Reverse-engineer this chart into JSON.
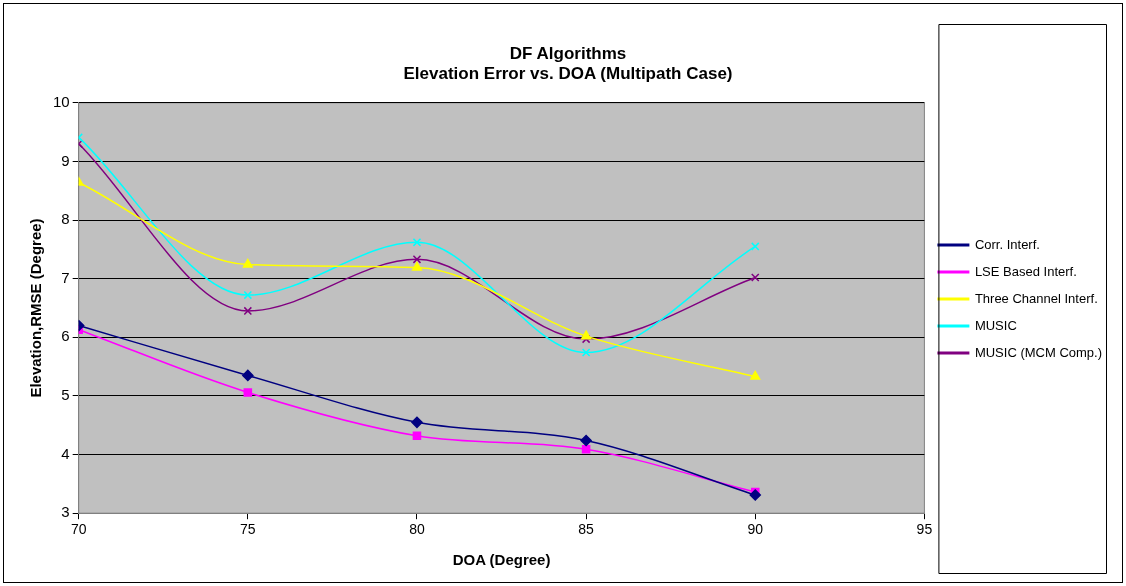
{
  "chart_data": {
    "type": "line",
    "title": "DF Algorithms",
    "subtitle": "Elevation Error vs. DOA (Multipath Case)",
    "xlabel": "DOA (Degree)",
    "ylabel": "Elevation,RMSE (Degree)",
    "x": [
      70,
      75,
      80,
      85,
      90
    ],
    "xlim": [
      70,
      95
    ],
    "xticks": [
      70,
      75,
      80,
      85,
      90,
      95
    ],
    "ylim": [
      3,
      10
    ],
    "yticks": [
      3,
      4,
      5,
      6,
      7,
      8,
      9,
      10
    ],
    "grid": "y",
    "legend": "right",
    "series": [
      {
        "name": "Corr. Interf.",
        "color": "#000080",
        "marker": "diamond",
        "values": [
          6.2,
          5.35,
          4.55,
          4.24,
          3.31
        ]
      },
      {
        "name": "LSE Based Interf.",
        "color": "#ff00ff",
        "marker": "square",
        "values": [
          6.13,
          5.06,
          4.32,
          4.09,
          3.36
        ]
      },
      {
        "name": "Three Channel Interf.",
        "color": "#ffff00",
        "marker": "triangle",
        "values": [
          8.64,
          7.24,
          7.19,
          6.02,
          5.33
        ]
      },
      {
        "name": "MUSIC",
        "color": "#00ffff",
        "marker": "cross",
        "values": [
          9.41,
          6.72,
          7.62,
          5.74,
          7.55
        ]
      },
      {
        "name": "MUSIC (MCM Comp.)",
        "color": "#800080",
        "marker": "cross",
        "values": [
          9.3,
          6.45,
          7.33,
          5.97,
          7.02
        ]
      }
    ]
  }
}
